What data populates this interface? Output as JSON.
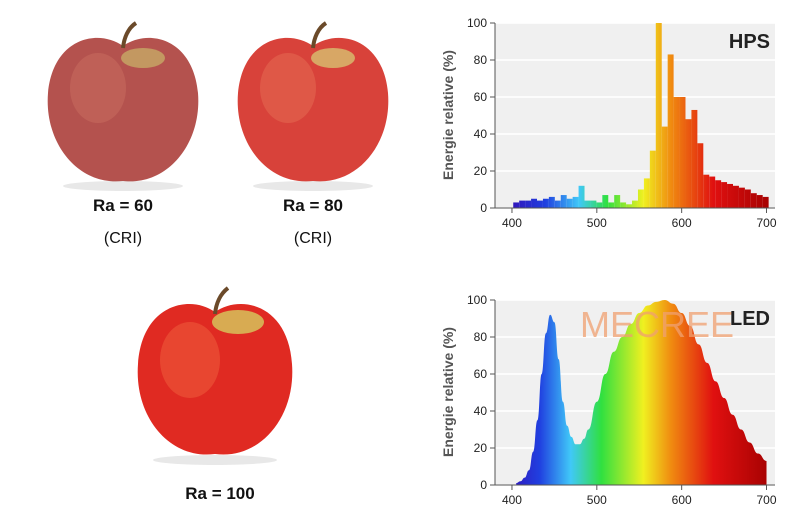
{
  "captions": {
    "a": "Ra = 60",
    "a_sub": "(CRI)",
    "b": "Ra = 80",
    "b_sub": "(CRI)",
    "c": "Ra = 100"
  },
  "apples": [
    {
      "tone": "dull",
      "body": "#b4524e",
      "highlight": "#d99a8a"
    },
    {
      "tone": "medium",
      "body": "#d8423a",
      "highlight": "#f0a08c"
    },
    {
      "tone": "vivid",
      "body": "#e02a22",
      "highlight": "#f5b070"
    }
  ],
  "chart_data": [
    {
      "type": "bar",
      "title": "HPS",
      "ylabel": "Energie relative (%)",
      "xlabel": "",
      "xlim": [
        380,
        710
      ],
      "ylim": [
        0,
        100
      ],
      "xticks": [
        "400",
        "500",
        "600",
        "700"
      ],
      "yticks": [
        "0",
        "20",
        "40",
        "60",
        "80",
        "100"
      ],
      "grid": true,
      "bin_width": 7,
      "x": [
        405,
        412,
        419,
        426,
        433,
        440,
        447,
        454,
        461,
        468,
        475,
        482,
        489,
        496,
        503,
        510,
        517,
        524,
        531,
        538,
        545,
        552,
        559,
        566,
        573,
        580,
        587,
        594,
        601,
        608,
        615,
        622,
        629,
        636,
        643,
        650,
        657,
        664,
        671,
        678,
        685,
        692,
        699
      ],
      "values": [
        3,
        4,
        4,
        5,
        4,
        5,
        6,
        4,
        7,
        5,
        6,
        12,
        4,
        4,
        3,
        7,
        3,
        7,
        3,
        2,
        4,
        10,
        16,
        31,
        100,
        44,
        83,
        60,
        60,
        48,
        53,
        35,
        18,
        17,
        15,
        14,
        13,
        12,
        11,
        10,
        8,
        7,
        6
      ]
    },
    {
      "type": "area",
      "title": "LED",
      "ylabel": "Energie relative (%)",
      "xlabel": "",
      "watermark": "MECREE",
      "xlim": [
        380,
        710
      ],
      "ylim": [
        0,
        100
      ],
      "xticks": [
        "400",
        "500",
        "600",
        "700"
      ],
      "yticks": [
        "0",
        "20",
        "40",
        "60",
        "80",
        "100"
      ],
      "grid": true,
      "x": [
        405,
        410,
        415,
        420,
        425,
        430,
        435,
        440,
        445,
        450,
        455,
        460,
        465,
        470,
        475,
        480,
        485,
        490,
        500,
        510,
        520,
        530,
        540,
        550,
        560,
        570,
        580,
        590,
        600,
        610,
        620,
        630,
        640,
        650,
        660,
        670,
        680,
        690,
        700
      ],
      "values": [
        1,
        2,
        4,
        8,
        18,
        35,
        60,
        82,
        92,
        88,
        68,
        45,
        32,
        26,
        22,
        22,
        25,
        30,
        45,
        60,
        72,
        80,
        87,
        93,
        97,
        99,
        100,
        98,
        93,
        86,
        76,
        66,
        56,
        47,
        38,
        30,
        23,
        17,
        13
      ]
    }
  ]
}
